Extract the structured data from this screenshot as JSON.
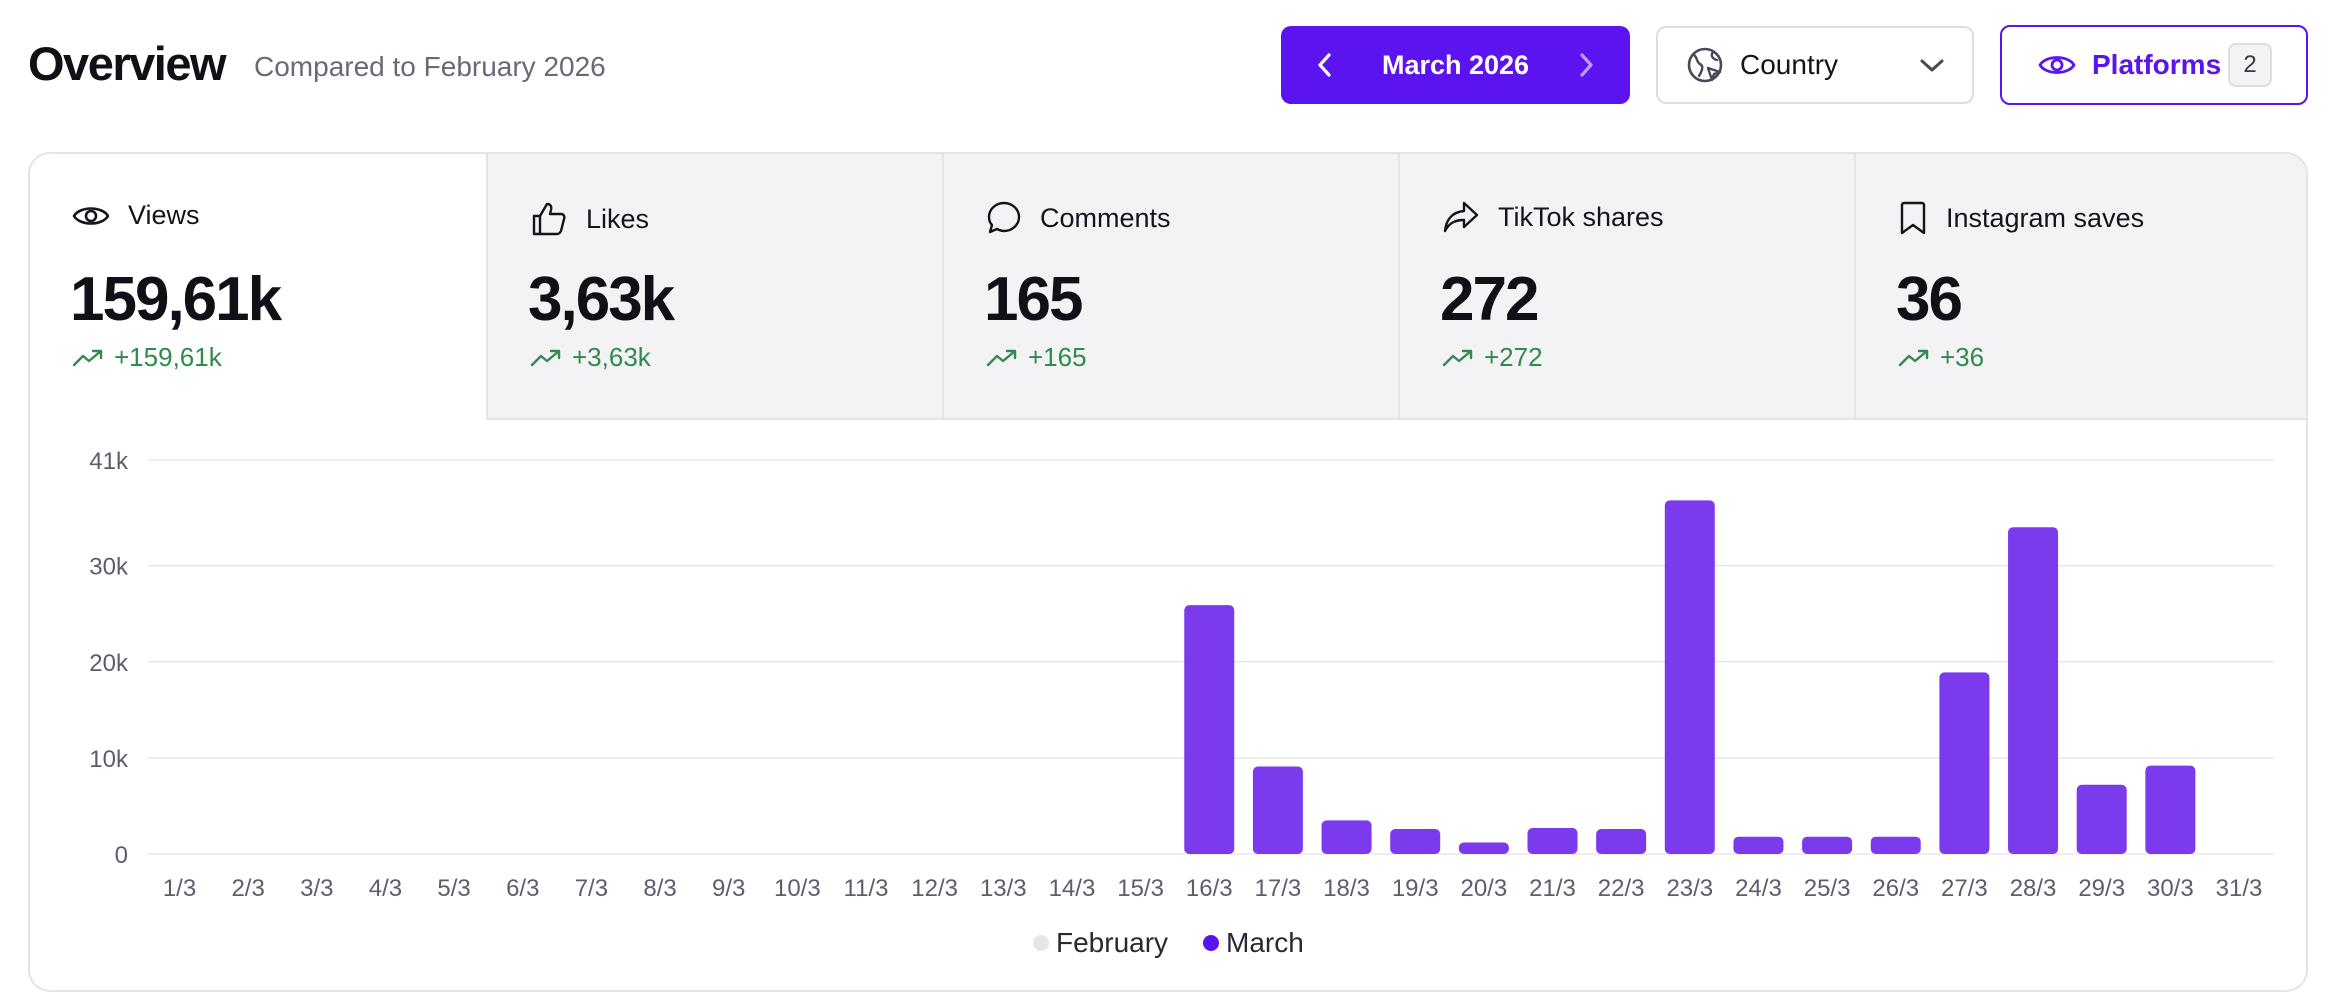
{
  "header": {
    "title": "Overview",
    "subtitle": "Compared to February 2026",
    "month_label": "March 2026",
    "country_label": "Country",
    "platforms_label": "Platforms",
    "platforms_count": "2"
  },
  "tabs": [
    {
      "label": "Views",
      "value": "159,61k",
      "delta": "+159,61k",
      "icon": "eye-icon"
    },
    {
      "label": "Likes",
      "value": "3,63k",
      "delta": "+3,63k",
      "icon": "thumbs-up-icon"
    },
    {
      "label": "Comments",
      "value": "165",
      "delta": "+165",
      "icon": "comment-icon"
    },
    {
      "label": "TikTok shares",
      "value": "272",
      "delta": "+272",
      "icon": "share-icon"
    },
    {
      "label": "Instagram saves",
      "value": "36",
      "delta": "+36",
      "icon": "bookmark-icon"
    }
  ],
  "colors": {
    "accent": "#5b13ef",
    "bar_march": "#7c3aed",
    "legend_february": "#e6e5ea",
    "positive": "#2f8a4b"
  },
  "chart_data": {
    "type": "bar",
    "title": "",
    "xlabel": "",
    "ylabel": "",
    "ylim": [
      0,
      41000
    ],
    "yticks": [
      0,
      10000,
      20000,
      30000,
      41000
    ],
    "ytick_labels": [
      "0",
      "10k",
      "20k",
      "30k",
      "41k"
    ],
    "grid": true,
    "legend_position": "bottom-center",
    "categories": [
      "1/3",
      "2/3",
      "3/3",
      "4/3",
      "5/3",
      "6/3",
      "7/3",
      "8/3",
      "9/3",
      "10/3",
      "11/3",
      "12/3",
      "13/3",
      "14/3",
      "15/3",
      "16/3",
      "17/3",
      "18/3",
      "19/3",
      "20/3",
      "21/3",
      "22/3",
      "23/3",
      "24/3",
      "25/3",
      "26/3",
      "27/3",
      "28/3",
      "29/3",
      "30/3",
      "31/3"
    ],
    "series": [
      {
        "name": "February",
        "values": [
          0,
          0,
          0,
          0,
          0,
          0,
          0,
          0,
          0,
          0,
          0,
          0,
          0,
          0,
          0,
          0,
          0,
          0,
          0,
          0,
          0,
          0,
          0,
          0,
          0,
          0,
          0,
          0,
          0,
          0,
          0
        ]
      },
      {
        "name": "March",
        "values": [
          0,
          0,
          0,
          0,
          0,
          0,
          0,
          0,
          0,
          0,
          0,
          0,
          0,
          0,
          0,
          25900,
          9100,
          3500,
          2600,
          1200,
          2700,
          2600,
          36800,
          1800,
          1800,
          1800,
          18900,
          34000,
          7200,
          9200,
          0
        ]
      }
    ]
  }
}
